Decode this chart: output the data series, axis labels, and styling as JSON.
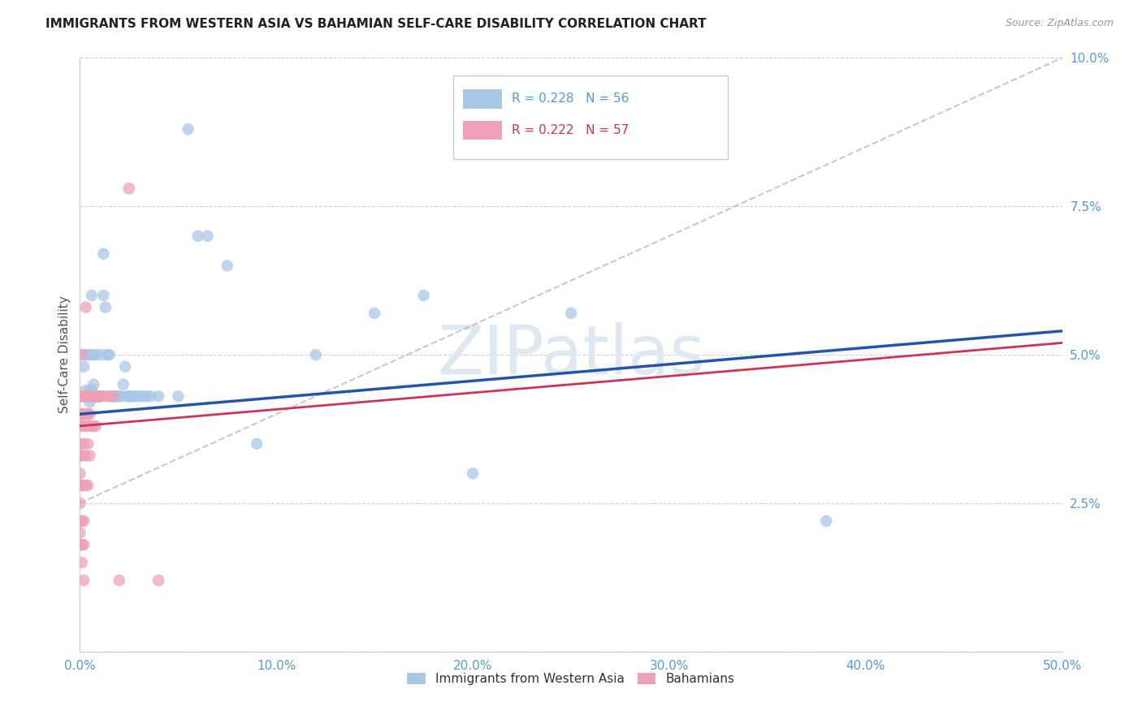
{
  "title": "IMMIGRANTS FROM WESTERN ASIA VS BAHAMIAN SELF-CARE DISABILITY CORRELATION CHART",
  "source": "Source: ZipAtlas.com",
  "ylabel": "Self-Care Disability",
  "xlim": [
    0,
    0.5
  ],
  "ylim": [
    0,
    0.1
  ],
  "xticks": [
    0.0,
    0.1,
    0.2,
    0.3,
    0.4,
    0.5
  ],
  "yticks": [
    0.0,
    0.025,
    0.05,
    0.075,
    0.1
  ],
  "xtick_labels": [
    "0.0%",
    "10.0%",
    "20.0%",
    "30.0%",
    "40.0%",
    "50.0%"
  ],
  "ytick_labels": [
    "",
    "2.5%",
    "5.0%",
    "7.5%",
    "10.0%"
  ],
  "blue_R": "0.228",
  "blue_N": "56",
  "pink_R": "0.222",
  "pink_N": "57",
  "blue_color": "#a8c8e8",
  "pink_color": "#f0a0b8",
  "blue_line_color": "#2255aa",
  "pink_line_color": "#cc3355",
  "dash_line_color": "#bbbbbb",
  "axis_label_color": "#5599dd",
  "title_color": "#222222",
  "grid_color": "#cccccc",
  "watermark_text": "ZIPatlas",
  "watermark_color": "#dde8f0",
  "legend_label_blue": "Immigrants from Western Asia",
  "legend_label_pink": "Bahamians",
  "blue_points": [
    [
      0.001,
      0.05
    ],
    [
      0.002,
      0.048
    ],
    [
      0.002,
      0.038
    ],
    [
      0.003,
      0.05
    ],
    [
      0.003,
      0.044
    ],
    [
      0.004,
      0.05
    ],
    [
      0.004,
      0.043
    ],
    [
      0.005,
      0.05
    ],
    [
      0.005,
      0.044
    ],
    [
      0.005,
      0.042
    ],
    [
      0.006,
      0.044
    ],
    [
      0.006,
      0.06
    ],
    [
      0.007,
      0.05
    ],
    [
      0.007,
      0.045
    ],
    [
      0.008,
      0.05
    ],
    [
      0.008,
      0.043
    ],
    [
      0.009,
      0.043
    ],
    [
      0.009,
      0.043
    ],
    [
      0.01,
      0.043
    ],
    [
      0.01,
      0.043
    ],
    [
      0.011,
      0.05
    ],
    [
      0.012,
      0.067
    ],
    [
      0.012,
      0.06
    ],
    [
      0.013,
      0.058
    ],
    [
      0.014,
      0.05
    ],
    [
      0.015,
      0.05
    ],
    [
      0.016,
      0.043
    ],
    [
      0.017,
      0.043
    ],
    [
      0.018,
      0.043
    ],
    [
      0.019,
      0.043
    ],
    [
      0.02,
      0.043
    ],
    [
      0.021,
      0.043
    ],
    [
      0.022,
      0.045
    ],
    [
      0.023,
      0.048
    ],
    [
      0.024,
      0.043
    ],
    [
      0.025,
      0.043
    ],
    [
      0.026,
      0.043
    ],
    [
      0.027,
      0.043
    ],
    [
      0.028,
      0.043
    ],
    [
      0.03,
      0.043
    ],
    [
      0.032,
      0.043
    ],
    [
      0.034,
      0.043
    ],
    [
      0.036,
      0.043
    ],
    [
      0.04,
      0.043
    ],
    [
      0.05,
      0.043
    ],
    [
      0.055,
      0.088
    ],
    [
      0.06,
      0.07
    ],
    [
      0.065,
      0.07
    ],
    [
      0.075,
      0.065
    ],
    [
      0.09,
      0.035
    ],
    [
      0.12,
      0.05
    ],
    [
      0.15,
      0.057
    ],
    [
      0.175,
      0.06
    ],
    [
      0.2,
      0.03
    ],
    [
      0.25,
      0.057
    ],
    [
      0.38,
      0.022
    ]
  ],
  "pink_points": [
    [
      0.0,
      0.043
    ],
    [
      0.0,
      0.043
    ],
    [
      0.0,
      0.04
    ],
    [
      0.0,
      0.038
    ],
    [
      0.0,
      0.035
    ],
    [
      0.0,
      0.033
    ],
    [
      0.0,
      0.03
    ],
    [
      0.0,
      0.028
    ],
    [
      0.0,
      0.025
    ],
    [
      0.0,
      0.022
    ],
    [
      0.0,
      0.02
    ],
    [
      0.0,
      0.018
    ],
    [
      0.001,
      0.05
    ],
    [
      0.001,
      0.043
    ],
    [
      0.001,
      0.04
    ],
    [
      0.001,
      0.038
    ],
    [
      0.001,
      0.033
    ],
    [
      0.001,
      0.028
    ],
    [
      0.001,
      0.022
    ],
    [
      0.001,
      0.018
    ],
    [
      0.001,
      0.015
    ],
    [
      0.002,
      0.043
    ],
    [
      0.002,
      0.04
    ],
    [
      0.002,
      0.035
    ],
    [
      0.002,
      0.028
    ],
    [
      0.002,
      0.022
    ],
    [
      0.002,
      0.018
    ],
    [
      0.002,
      0.012
    ],
    [
      0.003,
      0.058
    ],
    [
      0.003,
      0.043
    ],
    [
      0.003,
      0.04
    ],
    [
      0.003,
      0.038
    ],
    [
      0.003,
      0.033
    ],
    [
      0.003,
      0.028
    ],
    [
      0.004,
      0.043
    ],
    [
      0.004,
      0.04
    ],
    [
      0.004,
      0.035
    ],
    [
      0.004,
      0.028
    ],
    [
      0.005,
      0.043
    ],
    [
      0.005,
      0.04
    ],
    [
      0.005,
      0.038
    ],
    [
      0.005,
      0.033
    ],
    [
      0.006,
      0.043
    ],
    [
      0.006,
      0.038
    ],
    [
      0.007,
      0.043
    ],
    [
      0.007,
      0.038
    ],
    [
      0.008,
      0.043
    ],
    [
      0.008,
      0.038
    ],
    [
      0.009,
      0.043
    ],
    [
      0.01,
      0.043
    ],
    [
      0.011,
      0.043
    ],
    [
      0.013,
      0.043
    ],
    [
      0.015,
      0.043
    ],
    [
      0.017,
      0.043
    ],
    [
      0.02,
      0.012
    ],
    [
      0.025,
      0.078
    ],
    [
      0.04,
      0.012
    ]
  ],
  "blue_trend_x": [
    0.0,
    0.5
  ],
  "blue_trend_y": [
    0.04,
    0.054
  ],
  "pink_trend_x": [
    0.0,
    0.5
  ],
  "pink_trend_y": [
    0.038,
    0.052
  ],
  "dash_trend_x": [
    0.0,
    0.5
  ],
  "dash_trend_y": [
    0.025,
    0.1
  ]
}
